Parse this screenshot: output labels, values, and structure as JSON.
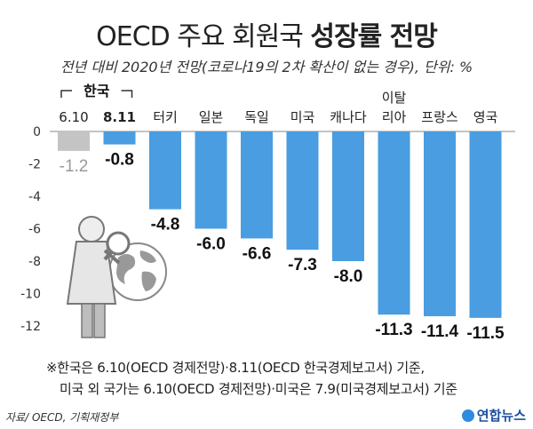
{
  "header": {
    "title_light": "OECD 주요 회원국",
    "title_bold": "성장률 전망",
    "subtitle": "전년 대비 2020년 전망(코로나19의 2차 확산이 없는 경우), 단위: %"
  },
  "chart_data": {
    "type": "bar",
    "group_label": "한국",
    "categories": [
      "6.10",
      "8.11",
      "터키",
      "일본",
      "독일",
      "미국",
      "캐나다",
      "이탈\n리아",
      "프랑스",
      "영국"
    ],
    "values": [
      -1.2,
      -0.8,
      -4.8,
      -6.0,
      -6.6,
      -7.3,
      -8.0,
      -11.3,
      -11.4,
      -11.5
    ],
    "value_labels": [
      "-1.2",
      "-0.8",
      "-4.8",
      "-6.0",
      "-6.6",
      "-7.3",
      "-8.0",
      "-11.3",
      "-11.4",
      "-11.5"
    ],
    "yticks": [
      "0",
      "-2",
      "-4",
      "-6",
      "-8",
      "-10",
      "-12"
    ],
    "ylim": [
      -12,
      0
    ],
    "colors": {
      "primary": "#4a9de0",
      "muted": "#c4c4c4"
    }
  },
  "notes": {
    "line1": "※한국은 6.10(OECD 경제전망)·8.11(OECD 한국경제보고서) 기준,",
    "line2": "미국 외 국가는 6.10(OECD 경제전망)·미국은 7.9(미국경제보고서) 기준"
  },
  "footer": {
    "source": "자료/ OECD, 기획재정부",
    "brand": "연합뉴스"
  }
}
